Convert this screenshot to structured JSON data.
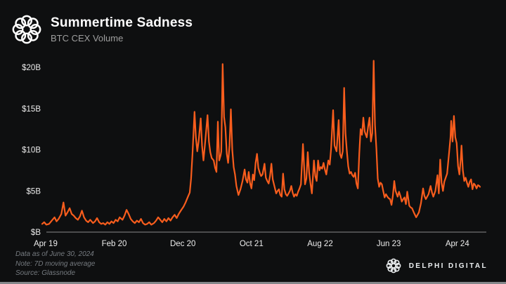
{
  "header": {
    "title": "Summertime Sadness",
    "subtitle": "BTC CEX Volume"
  },
  "branding": {
    "header_logo": "delphi-knot-logo",
    "footer_logo": "delphi-knot-logo",
    "footer_logo_text": "DELPHI DIGITAL"
  },
  "footer": {
    "lines": [
      "Data as of June 30, 2024",
      "Note: 7D moving average",
      "Source: Glassnode"
    ]
  },
  "colors": {
    "background": "#0e0f10",
    "line": "#f85d1d",
    "title_text": "#ffffff",
    "subtitle_text": "#9e9e9e",
    "axis_text": "#ececec",
    "axis_line": "#8a8a8a",
    "footer_text": "#767b80",
    "bottom_strip": "#84878a"
  },
  "chart_data": {
    "type": "line",
    "title": "Summertime Sadness",
    "subtitle": "BTC CEX Volume",
    "y_unit": "USD billions per day",
    "ylim": [
      0,
      21.5
    ],
    "y_ticks": [
      {
        "label": "$20B",
        "value": 20
      },
      {
        "label": "$15B",
        "value": 15
      },
      {
        "label": "$10B",
        "value": 10
      },
      {
        "label": "$5B",
        "value": 5
      },
      {
        "label": "$B",
        "value": 0
      }
    ],
    "x_unit": "months since Apr 2019",
    "xlim": [
      -0.5,
      63.4
    ],
    "x_ticks": [
      {
        "label": "Apr 19",
        "t": 0
      },
      {
        "label": "Feb 20",
        "t": 10
      },
      {
        "label": "Dec 20",
        "t": 20
      },
      {
        "label": "Oct 21",
        "t": 30
      },
      {
        "label": "Aug 22",
        "t": 40
      },
      {
        "label": "Jun 23",
        "t": 50
      },
      {
        "label": "Apr 24",
        "t": 60
      }
    ],
    "grid": false,
    "legend": false,
    "series": [
      {
        "name": "BTC CEX Volume (7D moving average)",
        "color": "#f85d1d",
        "points": [
          [
            -0.5,
            1.0
          ],
          [
            -0.2,
            1.2
          ],
          [
            0.1,
            0.9
          ],
          [
            0.5,
            1.0
          ],
          [
            0.9,
            1.4
          ],
          [
            1.3,
            1.8
          ],
          [
            1.6,
            1.3
          ],
          [
            1.9,
            1.6
          ],
          [
            2.3,
            2.2
          ],
          [
            2.6,
            3.6
          ],
          [
            2.9,
            2.0
          ],
          [
            3.2,
            2.4
          ],
          [
            3.5,
            2.9
          ],
          [
            3.8,
            2.2
          ],
          [
            4.1,
            2.0
          ],
          [
            4.4,
            1.7
          ],
          [
            4.7,
            1.5
          ],
          [
            5.0,
            1.9
          ],
          [
            5.3,
            2.6
          ],
          [
            5.6,
            1.8
          ],
          [
            5.9,
            1.4
          ],
          [
            6.2,
            1.2
          ],
          [
            6.5,
            1.5
          ],
          [
            6.9,
            1.1
          ],
          [
            7.2,
            1.3
          ],
          [
            7.5,
            1.7
          ],
          [
            7.8,
            1.2
          ],
          [
            8.1,
            1.0
          ],
          [
            8.4,
            1.1
          ],
          [
            8.7,
            0.9
          ],
          [
            9.0,
            1.2
          ],
          [
            9.3,
            1.0
          ],
          [
            9.6,
            1.3
          ],
          [
            9.9,
            1.1
          ],
          [
            10.2,
            1.5
          ],
          [
            10.5,
            1.3
          ],
          [
            10.8,
            1.8
          ],
          [
            11.2,
            1.5
          ],
          [
            11.5,
            2.0
          ],
          [
            11.8,
            2.7
          ],
          [
            12.1,
            2.2
          ],
          [
            12.4,
            1.6
          ],
          [
            12.7,
            1.3
          ],
          [
            13.0,
            1.1
          ],
          [
            13.3,
            1.4
          ],
          [
            13.6,
            1.2
          ],
          [
            13.9,
            1.6
          ],
          [
            14.2,
            1.1
          ],
          [
            14.5,
            0.9
          ],
          [
            14.8,
            1.0
          ],
          [
            15.1,
            1.2
          ],
          [
            15.4,
            0.9
          ],
          [
            15.8,
            1.1
          ],
          [
            16.1,
            1.4
          ],
          [
            16.4,
            1.8
          ],
          [
            16.7,
            1.5
          ],
          [
            17.0,
            1.2
          ],
          [
            17.3,
            1.6
          ],
          [
            17.6,
            1.3
          ],
          [
            17.9,
            1.7
          ],
          [
            18.2,
            1.4
          ],
          [
            18.5,
            1.8
          ],
          [
            18.8,
            2.1
          ],
          [
            19.1,
            1.7
          ],
          [
            19.4,
            2.2
          ],
          [
            19.7,
            2.6
          ],
          [
            20.1,
            3.1
          ],
          [
            20.4,
            3.6
          ],
          [
            20.7,
            4.2
          ],
          [
            21.0,
            4.8
          ],
          [
            21.2,
            6.5
          ],
          [
            21.4,
            9.5
          ],
          [
            21.7,
            14.6
          ],
          [
            21.9,
            11.5
          ],
          [
            22.1,
            9.8
          ],
          [
            22.3,
            11.0
          ],
          [
            22.6,
            13.8
          ],
          [
            22.8,
            10.5
          ],
          [
            23.0,
            8.7
          ],
          [
            23.2,
            10.4
          ],
          [
            23.6,
            14.2
          ],
          [
            23.8,
            11.0
          ],
          [
            24.0,
            9.7
          ],
          [
            24.2,
            9.0
          ],
          [
            24.5,
            8.7
          ],
          [
            24.7,
            7.8
          ],
          [
            24.9,
            7.3
          ],
          [
            25.1,
            13.4
          ],
          [
            25.3,
            8.7
          ],
          [
            25.5,
            9.3
          ],
          [
            25.6,
            9.8
          ],
          [
            25.8,
            20.4
          ],
          [
            26.0,
            14.0
          ],
          [
            26.2,
            12.7
          ],
          [
            26.4,
            9.5
          ],
          [
            26.6,
            8.4
          ],
          [
            26.8,
            10.5
          ],
          [
            27.0,
            14.9
          ],
          [
            27.2,
            10.0
          ],
          [
            27.4,
            7.9
          ],
          [
            27.6,
            7.0
          ],
          [
            27.8,
            5.6
          ],
          [
            28.1,
            4.5
          ],
          [
            28.4,
            5.2
          ],
          [
            28.7,
            6.2
          ],
          [
            29.0,
            7.6
          ],
          [
            29.2,
            6.4
          ],
          [
            29.4,
            6.0
          ],
          [
            29.6,
            7.3
          ],
          [
            29.8,
            5.9
          ],
          [
            30.0,
            5.3
          ],
          [
            30.2,
            7.0
          ],
          [
            30.4,
            6.3
          ],
          [
            30.6,
            8.4
          ],
          [
            30.8,
            9.5
          ],
          [
            31.0,
            7.8
          ],
          [
            31.2,
            7.2
          ],
          [
            31.4,
            6.8
          ],
          [
            31.6,
            7.0
          ],
          [
            31.9,
            8.3
          ],
          [
            32.1,
            6.6
          ],
          [
            32.3,
            6.2
          ],
          [
            32.5,
            5.9
          ],
          [
            32.7,
            6.8
          ],
          [
            32.9,
            8.3
          ],
          [
            33.1,
            6.4
          ],
          [
            33.3,
            5.7
          ],
          [
            33.6,
            4.7
          ],
          [
            33.8,
            5.0
          ],
          [
            34.0,
            5.2
          ],
          [
            34.2,
            4.5
          ],
          [
            34.4,
            4.3
          ],
          [
            34.6,
            7.1
          ],
          [
            34.8,
            5.2
          ],
          [
            35.0,
            4.6
          ],
          [
            35.2,
            4.4
          ],
          [
            35.4,
            4.7
          ],
          [
            35.6,
            5.0
          ],
          [
            35.8,
            5.6
          ],
          [
            36.0,
            4.8
          ],
          [
            36.2,
            4.3
          ],
          [
            36.4,
            4.6
          ],
          [
            36.6,
            4.4
          ],
          [
            36.8,
            4.9
          ],
          [
            37.0,
            5.3
          ],
          [
            37.2,
            5.8
          ],
          [
            37.5,
            10.7
          ],
          [
            37.8,
            5.8
          ],
          [
            38.0,
            6.5
          ],
          [
            38.2,
            9.7
          ],
          [
            38.4,
            7.2
          ],
          [
            38.6,
            5.9
          ],
          [
            38.8,
            4.7
          ],
          [
            39.1,
            8.7
          ],
          [
            39.3,
            6.8
          ],
          [
            39.5,
            6.2
          ],
          [
            39.7,
            8.7
          ],
          [
            39.9,
            7.5
          ],
          [
            40.1,
            7.9
          ],
          [
            40.3,
            7.7
          ],
          [
            40.5,
            8.4
          ],
          [
            40.7,
            7.6
          ],
          [
            40.9,
            7.0
          ],
          [
            41.2,
            8.7
          ],
          [
            41.4,
            8.2
          ],
          [
            41.6,
            10.1
          ],
          [
            41.9,
            14.8
          ],
          [
            42.1,
            10.5
          ],
          [
            42.4,
            9.8
          ],
          [
            42.7,
            13.6
          ],
          [
            42.9,
            9.5
          ],
          [
            43.1,
            9.0
          ],
          [
            43.3,
            9.8
          ],
          [
            43.5,
            17.5
          ],
          [
            43.7,
            12.0
          ],
          [
            43.9,
            9.8
          ],
          [
            44.1,
            8.0
          ],
          [
            44.3,
            7.1
          ],
          [
            44.5,
            7.3
          ],
          [
            44.7,
            6.9
          ],
          [
            44.9,
            6.7
          ],
          [
            45.1,
            7.2
          ],
          [
            45.3,
            5.9
          ],
          [
            45.5,
            5.3
          ],
          [
            45.7,
            9.5
          ],
          [
            45.9,
            12.5
          ],
          [
            46.1,
            11.8
          ],
          [
            46.3,
            13.9
          ],
          [
            46.5,
            12.2
          ],
          [
            46.8,
            11.5
          ],
          [
            47.0,
            12.8
          ],
          [
            47.2,
            13.9
          ],
          [
            47.4,
            11.0
          ],
          [
            47.6,
            12.0
          ],
          [
            47.8,
            20.8
          ],
          [
            48.0,
            13.0
          ],
          [
            48.2,
            10.1
          ],
          [
            48.4,
            6.5
          ],
          [
            48.6,
            5.5
          ],
          [
            48.8,
            6.0
          ],
          [
            49.0,
            5.8
          ],
          [
            49.2,
            5.0
          ],
          [
            49.4,
            4.2
          ],
          [
            49.6,
            4.6
          ],
          [
            49.8,
            4.3
          ],
          [
            50.0,
            4.1
          ],
          [
            50.2,
            4.0
          ],
          [
            50.4,
            3.3
          ],
          [
            50.6,
            4.4
          ],
          [
            50.8,
            6.2
          ],
          [
            51.0,
            5.0
          ],
          [
            51.3,
            4.3
          ],
          [
            51.5,
            4.9
          ],
          [
            51.7,
            4.4
          ],
          [
            51.9,
            3.7
          ],
          [
            52.1,
            4.0
          ],
          [
            52.3,
            4.2
          ],
          [
            52.5,
            3.4
          ],
          [
            52.7,
            4.9
          ],
          [
            53.0,
            3.2
          ],
          [
            53.2,
            3.0
          ],
          [
            53.4,
            2.9
          ],
          [
            53.7,
            2.3
          ],
          [
            54.0,
            1.8
          ],
          [
            54.2,
            2.1
          ],
          [
            54.4,
            2.4
          ],
          [
            54.7,
            3.5
          ],
          [
            55.0,
            5.3
          ],
          [
            55.2,
            4.4
          ],
          [
            55.4,
            4.0
          ],
          [
            55.8,
            4.6
          ],
          [
            56.1,
            5.6
          ],
          [
            56.3,
            4.8
          ],
          [
            56.5,
            4.3
          ],
          [
            56.8,
            5.0
          ],
          [
            57.1,
            6.9
          ],
          [
            57.3,
            4.7
          ],
          [
            57.5,
            8.8
          ],
          [
            57.7,
            6.0
          ],
          [
            57.9,
            5.0
          ],
          [
            58.1,
            6.1
          ],
          [
            58.3,
            6.6
          ],
          [
            58.5,
            7.1
          ],
          [
            58.8,
            9.7
          ],
          [
            59.0,
            11.5
          ],
          [
            59.1,
            13.5
          ],
          [
            59.3,
            11.0
          ],
          [
            59.5,
            14.1
          ],
          [
            59.7,
            11.5
          ],
          [
            59.9,
            10.8
          ],
          [
            60.1,
            8.0
          ],
          [
            60.3,
            7.0
          ],
          [
            60.5,
            9.0
          ],
          [
            60.6,
            10.5
          ],
          [
            60.8,
            7.5
          ],
          [
            61.0,
            6.2
          ],
          [
            61.2,
            6.6
          ],
          [
            61.4,
            6.0
          ],
          [
            61.6,
            5.5
          ],
          [
            61.8,
            6.1
          ],
          [
            62.0,
            6.4
          ],
          [
            62.2,
            5.2
          ],
          [
            62.4,
            5.9
          ],
          [
            62.6,
            5.7
          ],
          [
            62.8,
            5.3
          ],
          [
            63.0,
            5.7
          ],
          [
            63.2,
            5.6
          ],
          [
            63.3,
            5.5
          ]
        ]
      }
    ]
  }
}
